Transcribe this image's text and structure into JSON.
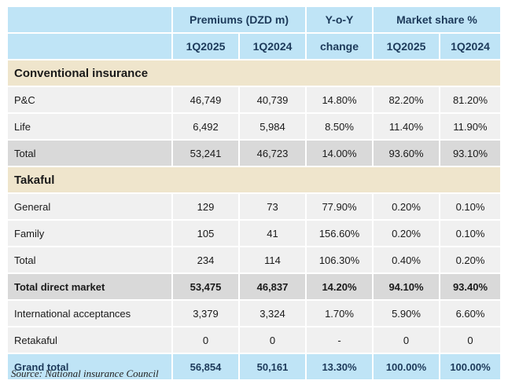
{
  "header": {
    "premiums": "Premiums (DZD m)",
    "yoy": "Y-o-Y",
    "market_share": "Market share %",
    "q2025": "1Q2025",
    "q2024": "1Q2024",
    "change": "change",
    "ms_q2025": "1Q2025",
    "ms_q2024": "1Q2024"
  },
  "sections": {
    "conventional": "Conventional insurance",
    "takaful": "Takaful"
  },
  "rows": [
    {
      "label": "P&C",
      "p2025": "46,749",
      "p2024": "40,739",
      "yoy": "14.80%",
      "ms2025": "82.20%",
      "ms2024": "81.20%"
    },
    {
      "label": "Life",
      "p2025": "6,492",
      "p2024": "5,984",
      "yoy": "8.50%",
      "ms2025": "11.40%",
      "ms2024": "11.90%"
    },
    {
      "label": "Total",
      "p2025": "53,241",
      "p2024": "46,723",
      "yoy": "14.00%",
      "ms2025": "93.60%",
      "ms2024": "93.10%"
    },
    {
      "label": "General",
      "p2025": "129",
      "p2024": "73",
      "yoy": "77.90%",
      "ms2025": "0.20%",
      "ms2024": "0.10%"
    },
    {
      "label": "Family",
      "p2025": "105",
      "p2024": "41",
      "yoy": "156.60%",
      "ms2025": "0.20%",
      "ms2024": "0.10%"
    },
    {
      "label": "Total",
      "p2025": "234",
      "p2024": "114",
      "yoy": "106.30%",
      "ms2025": "0.40%",
      "ms2024": "0.20%"
    },
    {
      "label": "Total direct market",
      "p2025": "53,475",
      "p2024": "46,837",
      "yoy": "14.20%",
      "ms2025": "94.10%",
      "ms2024": "93.40%"
    },
    {
      "label": "International acceptances",
      "p2025": "3,379",
      "p2024": "3,324",
      "yoy": "1.70%",
      "ms2025": "5.90%",
      "ms2024": "6.60%"
    },
    {
      "label": "Retakaful",
      "p2025": "0",
      "p2024": "0",
      "yoy": "-",
      "ms2025": "0",
      "ms2024": "0"
    },
    {
      "label": "Grand total",
      "p2025": "56,854",
      "p2024": "50,161",
      "yoy": "13.30%",
      "ms2025": "100.00%",
      "ms2024": "100.00%"
    }
  ],
  "source": "Source: National insurance Council",
  "colors": {
    "header_bg": "#bfe4f6",
    "section_bg": "#efe5cc",
    "row_bg": "#f0f0f0",
    "total_bg": "#d9d9d9"
  }
}
